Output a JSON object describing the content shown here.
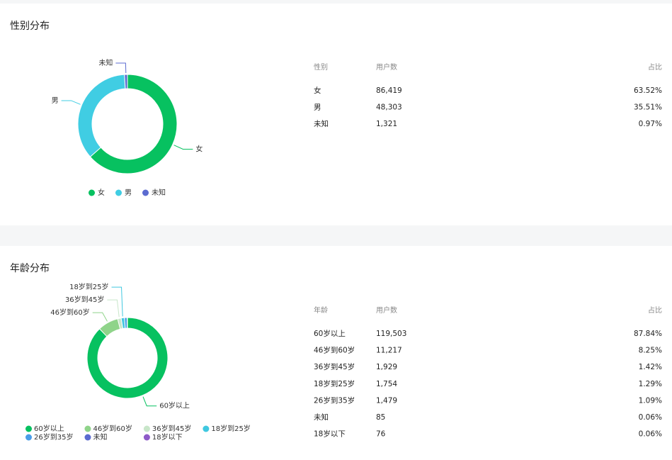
{
  "chart_data": [
    {
      "type": "pie",
      "title": "性别分布",
      "categories": [
        "女",
        "男",
        "未知"
      ],
      "values": [
        86419,
        48303,
        1321
      ],
      "colors": [
        "#07c160",
        "#40cde3",
        "#5b6bd0"
      ],
      "legend": "bottom"
    },
    {
      "type": "pie",
      "title": "年龄分布",
      "categories": [
        "60岁以上",
        "46岁到60岁",
        "36岁到45岁",
        "18岁到25岁",
        "26岁到35岁",
        "未知",
        "18岁以下"
      ],
      "values": [
        119503,
        11217,
        1929,
        1754,
        1479,
        85,
        76
      ],
      "colors": [
        "#07c160",
        "#8fd48a",
        "#c8e6c9",
        "#40c8e0",
        "#4a9de8",
        "#5b6bd0",
        "#8e5bc8"
      ],
      "legend": "bottom"
    }
  ],
  "tables": [
    {
      "header": [
        "性别",
        "用户数",
        "占比"
      ],
      "rows": [
        [
          "女",
          "86,419",
          "63.52%"
        ],
        [
          "男",
          "48,303",
          "35.51%"
        ],
        [
          "未知",
          "1,321",
          "0.97%"
        ]
      ]
    },
    {
      "header": [
        "年龄",
        "用户数",
        "占比"
      ],
      "rows": [
        [
          "60岁以上",
          "119,503",
          "87.84%"
        ],
        [
          "46岁到60岁",
          "11,217",
          "8.25%"
        ],
        [
          "36岁到45岁",
          "1,929",
          "1.42%"
        ],
        [
          "18岁到25岁",
          "1,754",
          "1.29%"
        ],
        [
          "26岁到35岁",
          "1,479",
          "1.09%"
        ],
        [
          "未知",
          "85",
          "0.06%"
        ],
        [
          "18岁以下",
          "76",
          "0.06%"
        ]
      ]
    }
  ]
}
